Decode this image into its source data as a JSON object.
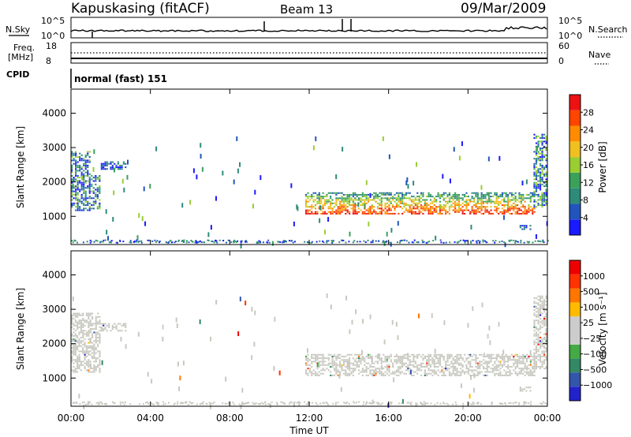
{
  "header": {
    "station": "Kapuskasing (fitACF)",
    "beam": "Beam 13",
    "date": "09/Mar/2009"
  },
  "labels": {
    "nsky": "N.Sky",
    "nsearch": "N.Search",
    "freq_line1": "Freq.",
    "freq_line2": "[MHz]",
    "nave": "Nave",
    "cpid": "CPID",
    "cpid_value": "normal (fast) 151",
    "x_title": "Time UT"
  },
  "noise_panel": {
    "left_ticks": [
      "10^5",
      "10^0"
    ],
    "right_ticks": [
      "10^5",
      "10^0"
    ]
  },
  "freq_panel": {
    "left_ticks": [
      "18",
      "8"
    ],
    "right_ticks": [
      "60",
      "0"
    ]
  },
  "colors": {
    "power_scale": [
      "#1a1aff",
      "#2255bb",
      "#2e8b7a",
      "#3aa05a",
      "#9acd32",
      "#f0c020",
      "#ff8c00",
      "#ff4500",
      "#ee1111"
    ],
    "velocity_scale": [
      "#2222cc",
      "#3355aa",
      "#338866",
      "#44aa44",
      "#cccccc",
      "#cccccc",
      "#ffbb00",
      "#ff7700",
      "#ff3300",
      "#ee0000"
    ],
    "ground_scatter": "#c8c8c0"
  },
  "chart_data": [
    {
      "type": "heatmap",
      "name": "power",
      "xlabel": "",
      "ylabel": "Slant Range [km]",
      "x_ticks": [
        "00:00",
        "04:00",
        "08:00",
        "12:00",
        "16:00",
        "20:00",
        "00:00"
      ],
      "y_ticks": [
        1000,
        2000,
        3000,
        4000
      ],
      "ylim": [
        180,
        4700
      ],
      "xlim": [
        0,
        24
      ],
      "colorbar": {
        "label": "Power [dB]",
        "ticks": [
          4,
          8,
          12,
          16,
          20,
          24,
          28
        ],
        "range": [
          0,
          32
        ]
      },
      "echo_regions": [
        {
          "t": [
            0.0,
            1.0
          ],
          "range": [
            1150,
            2900
          ],
          "level": "mixed"
        },
        {
          "t": [
            1.0,
            1.5
          ],
          "range": [
            1200,
            2200
          ],
          "level": "mixed"
        },
        {
          "t": [
            1.5,
            2.8
          ],
          "range": [
            2350,
            2600
          ],
          "level": "low"
        },
        {
          "t": [
            11.8,
            23.4
          ],
          "range": [
            1050,
            1700
          ],
          "level": "high"
        },
        {
          "t": [
            22.6,
            23.2
          ],
          "range": [
            600,
            750
          ],
          "level": "low"
        },
        {
          "t": [
            23.3,
            24.0
          ],
          "range": [
            1250,
            3400
          ],
          "level": "mixed"
        }
      ]
    },
    {
      "type": "heatmap",
      "name": "velocity",
      "xlabel": "Time UT",
      "ylabel": "Slant Range [km]",
      "x_ticks": [
        "00:00",
        "04:00",
        "08:00",
        "12:00",
        "16:00",
        "20:00",
        "00:00"
      ],
      "y_ticks": [
        1000,
        2000,
        3000,
        4000
      ],
      "ylim": [
        180,
        4700
      ],
      "xlim": [
        0,
        24
      ],
      "colorbar": {
        "label": "Velocity [m s⁻¹]",
        "ticks": [
          "1000",
          "500",
          "100",
          "25",
          "−25",
          "−100",
          "−500",
          "−1000"
        ]
      },
      "echo_regions": [
        {
          "t": [
            0.0,
            1.5
          ],
          "range": [
            1150,
            2900
          ],
          "kind": "ground-scatter"
        },
        {
          "t": [
            1.5,
            2.8
          ],
          "range": [
            2350,
            2600
          ],
          "kind": "ground-scatter"
        },
        {
          "t": [
            11.8,
            23.4
          ],
          "range": [
            1050,
            1700
          ],
          "kind": "ground-scatter"
        },
        {
          "t": [
            22.6,
            23.2
          ],
          "range": [
            600,
            750
          ],
          "kind": "ground-scatter"
        },
        {
          "t": [
            23.3,
            24.0
          ],
          "range": [
            1250,
            3400
          ],
          "kind": "ground-scatter"
        }
      ]
    }
  ]
}
